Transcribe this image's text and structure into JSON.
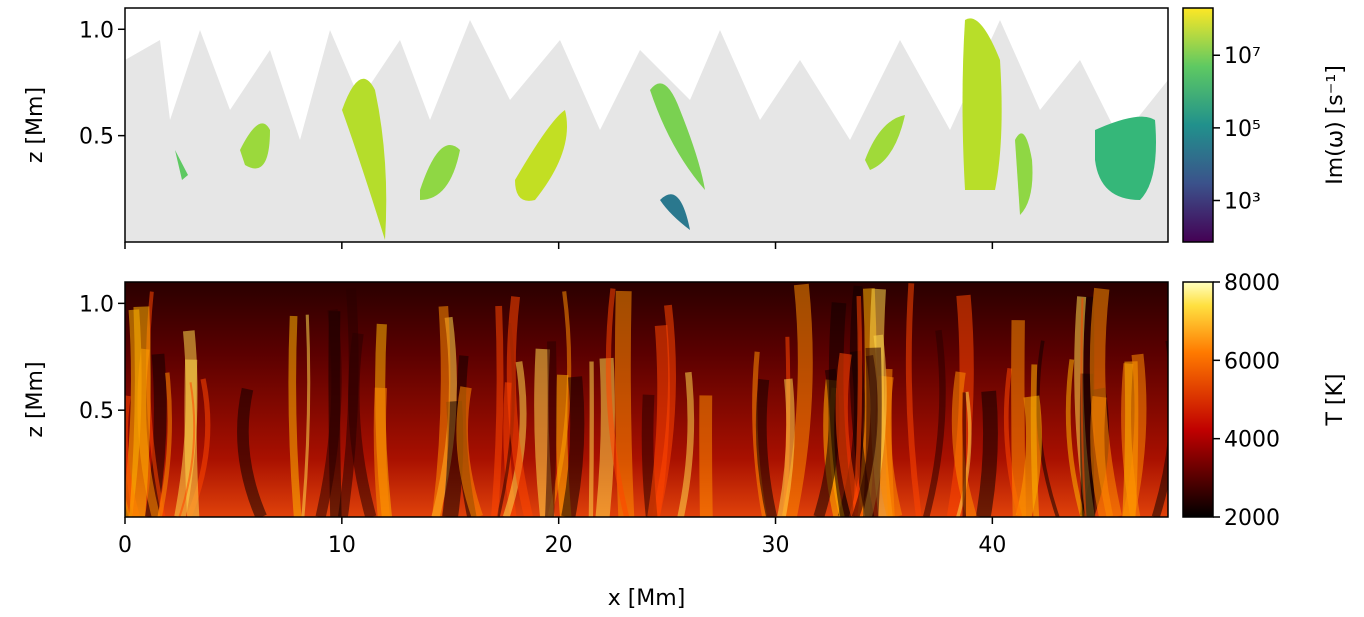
{
  "chart_data": [
    {
      "type": "heatmap",
      "ylabel": "z [Mm]",
      "xlim": [
        0,
        48.1
      ],
      "xticks": [
        0,
        10,
        20,
        30,
        40
      ],
      "xtick_labels": false,
      "ylim": [
        0,
        1.1
      ],
      "yticks": [
        0.5,
        {
          "value": 1,
          "label": "1.0"
        }
      ],
      "colorbar": {
        "label": "Im(ω) [s⁻¹]",
        "colormap": "viridis",
        "scale": "log",
        "lim": [
          72,
          200000000
        ],
        "ticks": [
          {
            "value": 1000,
            "label": "10³"
          },
          {
            "value": 100000,
            "label": "10⁵"
          },
          {
            "value": 10000000,
            "label": "10⁷"
          }
        ]
      }
    },
    {
      "type": "heatmap",
      "ylabel": "z [Mm]",
      "xlabel": "x [Mm]",
      "xlim": [
        0,
        48.1
      ],
      "xticks": [
        0,
        10,
        20,
        30,
        40
      ],
      "xtick_labels": true,
      "ylim": [
        0,
        1.1
      ],
      "yticks": [
        0.5,
        {
          "value": 1,
          "label": "1.0"
        }
      ],
      "colorbar": {
        "label": "T [K]",
        "colormap": "hot",
        "scale": "linear",
        "lim": [
          2000,
          8000
        ],
        "ticks": [
          2000,
          4000,
          6000,
          8000
        ]
      }
    }
  ]
}
